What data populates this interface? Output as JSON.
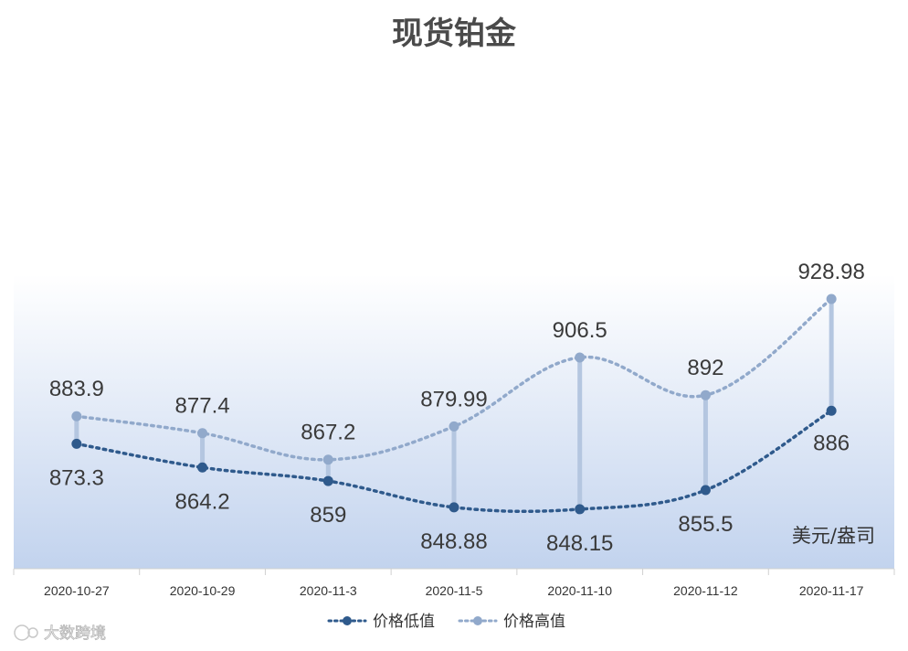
{
  "chart_data": {
    "type": "line",
    "title": "现货铂金",
    "unit": "美元/盎司",
    "categories": [
      "2020-10-27",
      "2020-10-29",
      "2020-11-3",
      "2020-11-5",
      "2020-11-10",
      "2020-11-12",
      "2020-11-17"
    ],
    "series": [
      {
        "name": "价格低值",
        "values": [
          873.3,
          864.2,
          859,
          848.88,
          848.15,
          855.5,
          886
        ],
        "labels": [
          "873.3",
          "864.2",
          "859",
          "848.88",
          "848.15",
          "855.5",
          "886"
        ],
        "color": "#2f5a8c"
      },
      {
        "name": "价格高值",
        "values": [
          883.9,
          877.4,
          867.2,
          879.99,
          906.5,
          892,
          928.98
        ],
        "labels": [
          "883.9",
          "877.4",
          "867.2",
          "879.99",
          "906.5",
          "892",
          "928.98"
        ],
        "color": "#91a9cb"
      }
    ],
    "high_low_lines": true,
    "smooth": true,
    "grid": false,
    "legend": "bottom"
  },
  "watermark": "大数跨境",
  "colors": {
    "plot_gradient_top": "#ffffff",
    "plot_gradient_bottom": "#c2d3ee",
    "high_low_line": "#b4c6e0"
  }
}
